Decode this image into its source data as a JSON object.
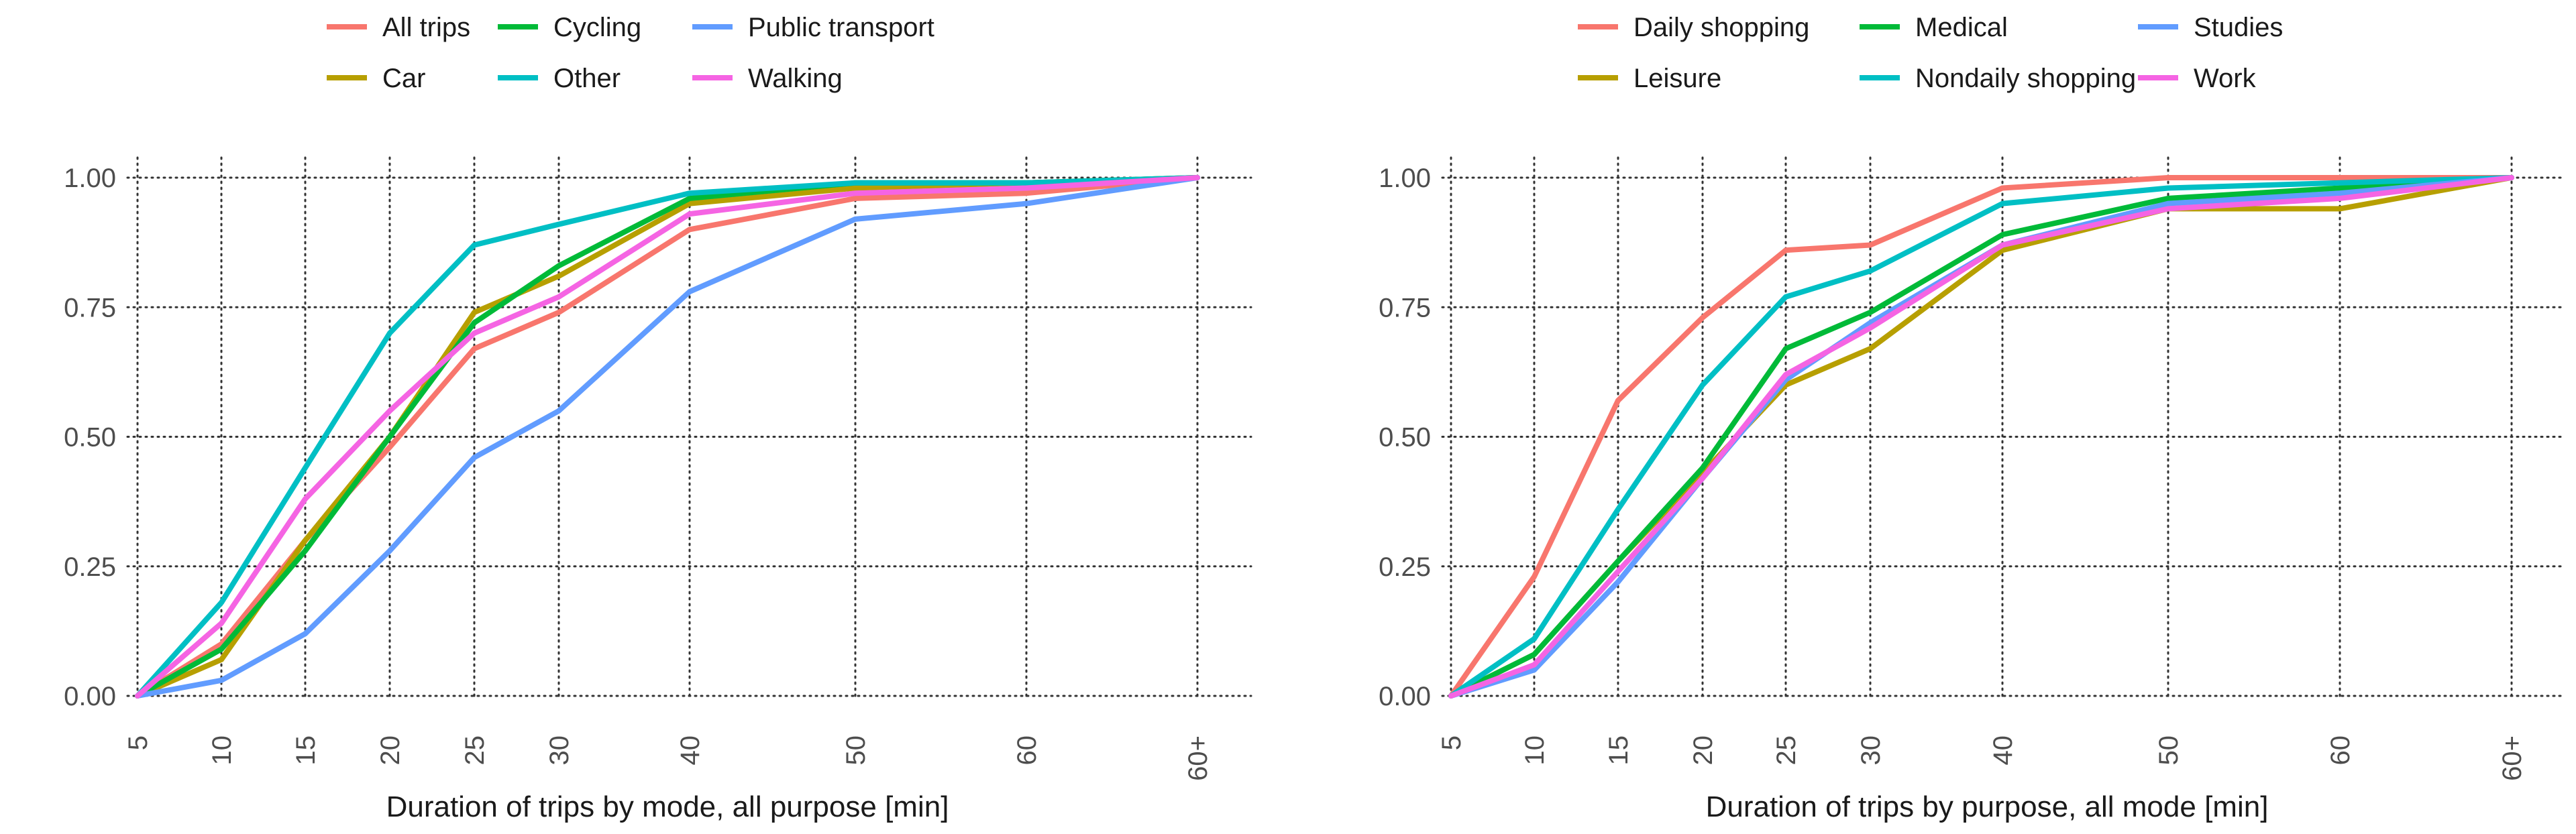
{
  "chart_data": [
    {
      "type": "line",
      "xlabel": "Duration of trips by mode, all purpose  [min]",
      "ylabel": "",
      "categories": [
        "5",
        "10",
        "15",
        "20",
        "25",
        "30",
        "40",
        "50",
        "60",
        "60+"
      ],
      "ylim": [
        0,
        1
      ],
      "yticks": [
        "0.00",
        "0.25",
        "0.50",
        "0.75",
        "1.00"
      ],
      "grid": true,
      "legend_position": "top",
      "series": [
        {
          "name": "All trips",
          "color": "#F8766D",
          "values": [
            0.0,
            0.1,
            0.3,
            0.48,
            0.67,
            0.74,
            0.9,
            0.96,
            0.97,
            1.0
          ]
        },
        {
          "name": "Car",
          "color": "#B79F00",
          "values": [
            0.0,
            0.07,
            0.3,
            0.5,
            0.74,
            0.81,
            0.95,
            0.98,
            0.99,
            1.0
          ]
        },
        {
          "name": "Cycling",
          "color": "#00BA38",
          "values": [
            0.0,
            0.09,
            0.28,
            0.5,
            0.72,
            0.83,
            0.96,
            0.99,
            0.99,
            1.0
          ]
        },
        {
          "name": "Other",
          "color": "#00BFC4",
          "values": [
            0.0,
            0.18,
            0.44,
            0.7,
            0.87,
            0.91,
            0.97,
            0.99,
            0.99,
            1.0
          ]
        },
        {
          "name": "Public transport",
          "color": "#619CFF",
          "values": [
            0.0,
            0.03,
            0.12,
            0.28,
            0.46,
            0.55,
            0.78,
            0.92,
            0.95,
            1.0
          ]
        },
        {
          "name": "Walking",
          "color": "#F564E3",
          "values": [
            0.0,
            0.14,
            0.38,
            0.55,
            0.7,
            0.77,
            0.93,
            0.97,
            0.98,
            1.0
          ]
        }
      ]
    },
    {
      "type": "line",
      "xlabel": "Duration of trips by purpose, all mode [min]",
      "ylabel": "",
      "categories": [
        "5",
        "10",
        "15",
        "20",
        "25",
        "30",
        "40",
        "50",
        "60",
        "60+"
      ],
      "ylim": [
        0,
        1
      ],
      "yticks": [
        "0.00",
        "0.25",
        "0.50",
        "0.75",
        "1.00"
      ],
      "grid": true,
      "legend_position": "top",
      "series": [
        {
          "name": "Daily shopping",
          "color": "#F8766D",
          "values": [
            0.0,
            0.23,
            0.57,
            0.73,
            0.86,
            0.87,
            0.98,
            1.0,
            1.0,
            1.0
          ]
        },
        {
          "name": "Leisure",
          "color": "#B79F00",
          "values": [
            0.0,
            0.08,
            0.26,
            0.43,
            0.6,
            0.67,
            0.86,
            0.94,
            0.94,
            1.0
          ]
        },
        {
          "name": "Medical",
          "color": "#00BA38",
          "values": [
            0.0,
            0.08,
            0.26,
            0.44,
            0.67,
            0.74,
            0.89,
            0.96,
            0.98,
            1.0
          ]
        },
        {
          "name": "Nondaily shopping",
          "color": "#00BFC4",
          "values": [
            0.0,
            0.11,
            0.36,
            0.6,
            0.77,
            0.82,
            0.95,
            0.98,
            0.99,
            1.0
          ]
        },
        {
          "name": "Studies",
          "color": "#619CFF",
          "values": [
            0.0,
            0.05,
            0.22,
            0.42,
            0.61,
            0.72,
            0.87,
            0.95,
            0.97,
            1.0
          ]
        },
        {
          "name": "Work",
          "color": "#F564E3",
          "values": [
            0.0,
            0.06,
            0.24,
            0.42,
            0.62,
            0.71,
            0.87,
            0.94,
            0.96,
            1.0
          ]
        }
      ]
    }
  ]
}
